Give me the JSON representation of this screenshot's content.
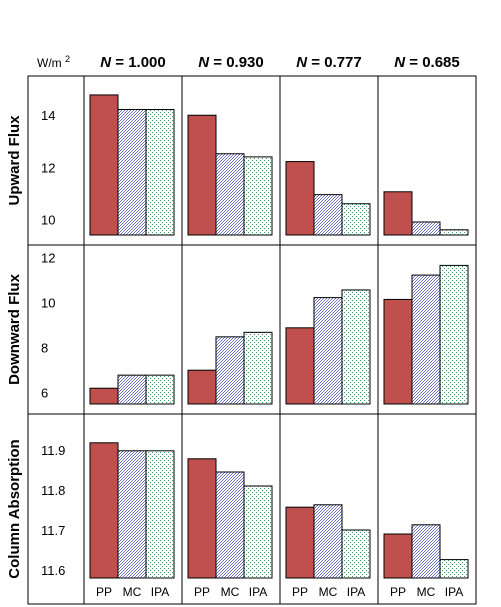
{
  "unit_label": "W/m2",
  "columns": [
    "N = 1.000",
    "N = 0.930",
    "N = 0.777",
    "N = 0.685"
  ],
  "colors": {
    "PP": "#c0504d",
    "MC": "#6b74c8",
    "IPA": "#7fbf9a",
    "frame": "#000000"
  },
  "chart_data": [
    {
      "type": "bar",
      "ylabel": "Upward Flux",
      "ylim": [
        9.4,
        15.2
      ],
      "yticks": [
        10,
        12,
        14
      ],
      "panel_titles": [
        "N = 1.000",
        "N = 0.930",
        "N = 0.777",
        "N = 0.685"
      ],
      "categories": [
        "PP",
        "MC",
        "IPA"
      ],
      "panels": [
        {
          "values": [
            14.78,
            14.22,
            14.22
          ]
        },
        {
          "values": [
            14.0,
            12.52,
            12.4
          ]
        },
        {
          "values": [
            12.22,
            10.95,
            10.6
          ]
        },
        {
          "values": [
            11.06,
            9.9,
            9.6
          ]
        }
      ]
    },
    {
      "type": "bar",
      "ylabel": "Downward Flux",
      "ylim": [
        5.5,
        12.2
      ],
      "yticks": [
        6,
        8,
        10,
        12
      ],
      "panel_titles": [
        "N = 1.000",
        "N = 0.930",
        "N = 0.777",
        "N = 0.685"
      ],
      "categories": [
        "PP",
        "MC",
        "IPA"
      ],
      "panels": [
        {
          "values": [
            6.2,
            6.78,
            6.78
          ]
        },
        {
          "values": [
            7.0,
            8.48,
            8.68
          ]
        },
        {
          "values": [
            8.88,
            10.22,
            10.56
          ]
        },
        {
          "values": [
            10.14,
            11.22,
            11.65
          ]
        }
      ]
    },
    {
      "type": "bar",
      "ylabel": "Column Absorption",
      "ylim": [
        11.58,
        11.97
      ],
      "yticks": [
        11.6,
        11.7,
        11.8,
        11.9
      ],
      "ytick_labels": [
        "11.6",
        "11.7",
        "11.8",
        "11.9"
      ],
      "panel_titles": [
        "N = 1.000",
        "N = 0.930",
        "N = 0.777",
        "N = 0.685"
      ],
      "categories": [
        "PP",
        "MC",
        "IPA"
      ],
      "panels": [
        {
          "values": [
            11.918,
            11.898,
            11.898
          ]
        },
        {
          "values": [
            11.878,
            11.845,
            11.81
          ]
        },
        {
          "values": [
            11.757,
            11.763,
            11.7
          ]
        },
        {
          "values": [
            11.69,
            11.713,
            11.626
          ]
        }
      ]
    }
  ]
}
